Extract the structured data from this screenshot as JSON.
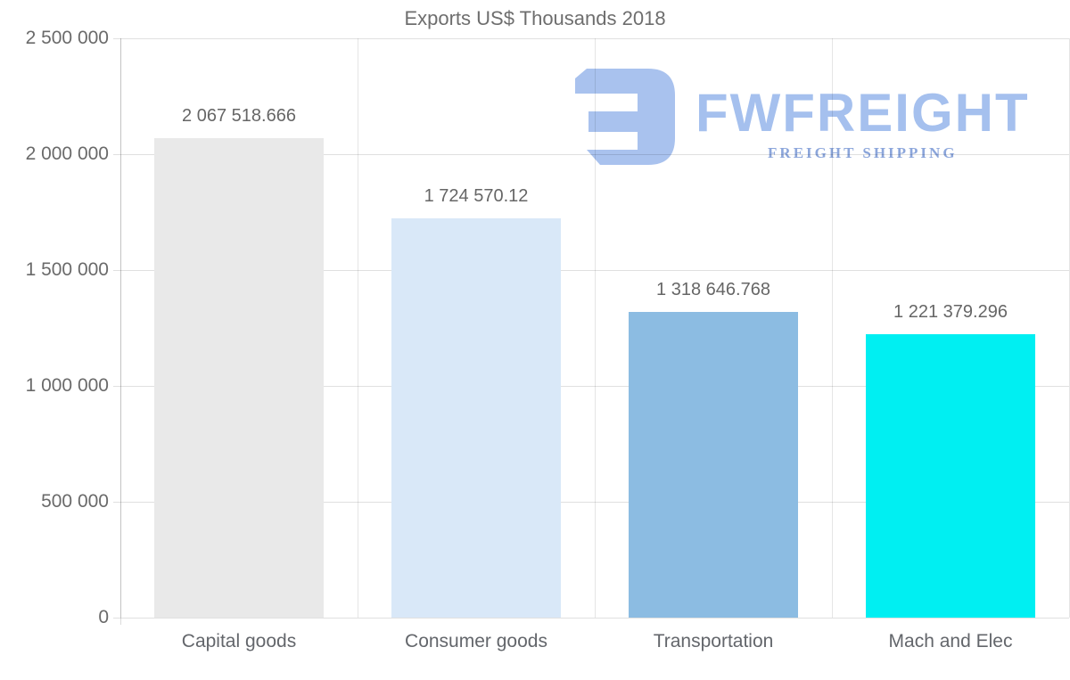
{
  "title": "Exports US$ Thousands 2018",
  "watermark": {
    "brand": "FWFREIGHT",
    "tagline": "FREIGHT SHIPPING",
    "icon": "fwfreight-mark-icon",
    "brand_color": "#a5c0ee",
    "tagline_color": "#8ca6db",
    "icon_color": "#a9c2ee"
  },
  "chart_data": {
    "type": "bar",
    "title": "Exports US$ Thousands 2018",
    "categories": [
      "Capital goods",
      "Consumer goods",
      "Transportation",
      "Mach and Elec"
    ],
    "values": [
      2067518.666,
      1724570.12,
      1318646.768,
      1221379.296
    ],
    "value_labels": [
      "2 067 518.666",
      "1 724 570.12",
      "1 318 646.768",
      "1 221 379.296"
    ],
    "bar_colors": [
      "#e9e9e9",
      "#d9e8f8",
      "#8cbce2",
      "#00eff2"
    ],
    "xlabel": "",
    "ylabel": "",
    "ylim": [
      0,
      2500000
    ],
    "y_ticks": [
      {
        "value": 0,
        "label": "0"
      },
      {
        "value": 500000,
        "label": "500 000"
      },
      {
        "value": 1000000,
        "label": "1 000 000"
      },
      {
        "value": 1500000,
        "label": "1 500 000"
      },
      {
        "value": 2000000,
        "label": "2 000 000"
      },
      {
        "value": 2500000,
        "label": "2 500 000"
      }
    ],
    "grid": true,
    "legend": false
  },
  "colors": {
    "background": "#ffffff",
    "grid": "#e2e2e2",
    "title_text": "#6e6e6e",
    "tick_text": "#6a6a6a",
    "value_text": "#666666",
    "category_text": "#63666b"
  }
}
